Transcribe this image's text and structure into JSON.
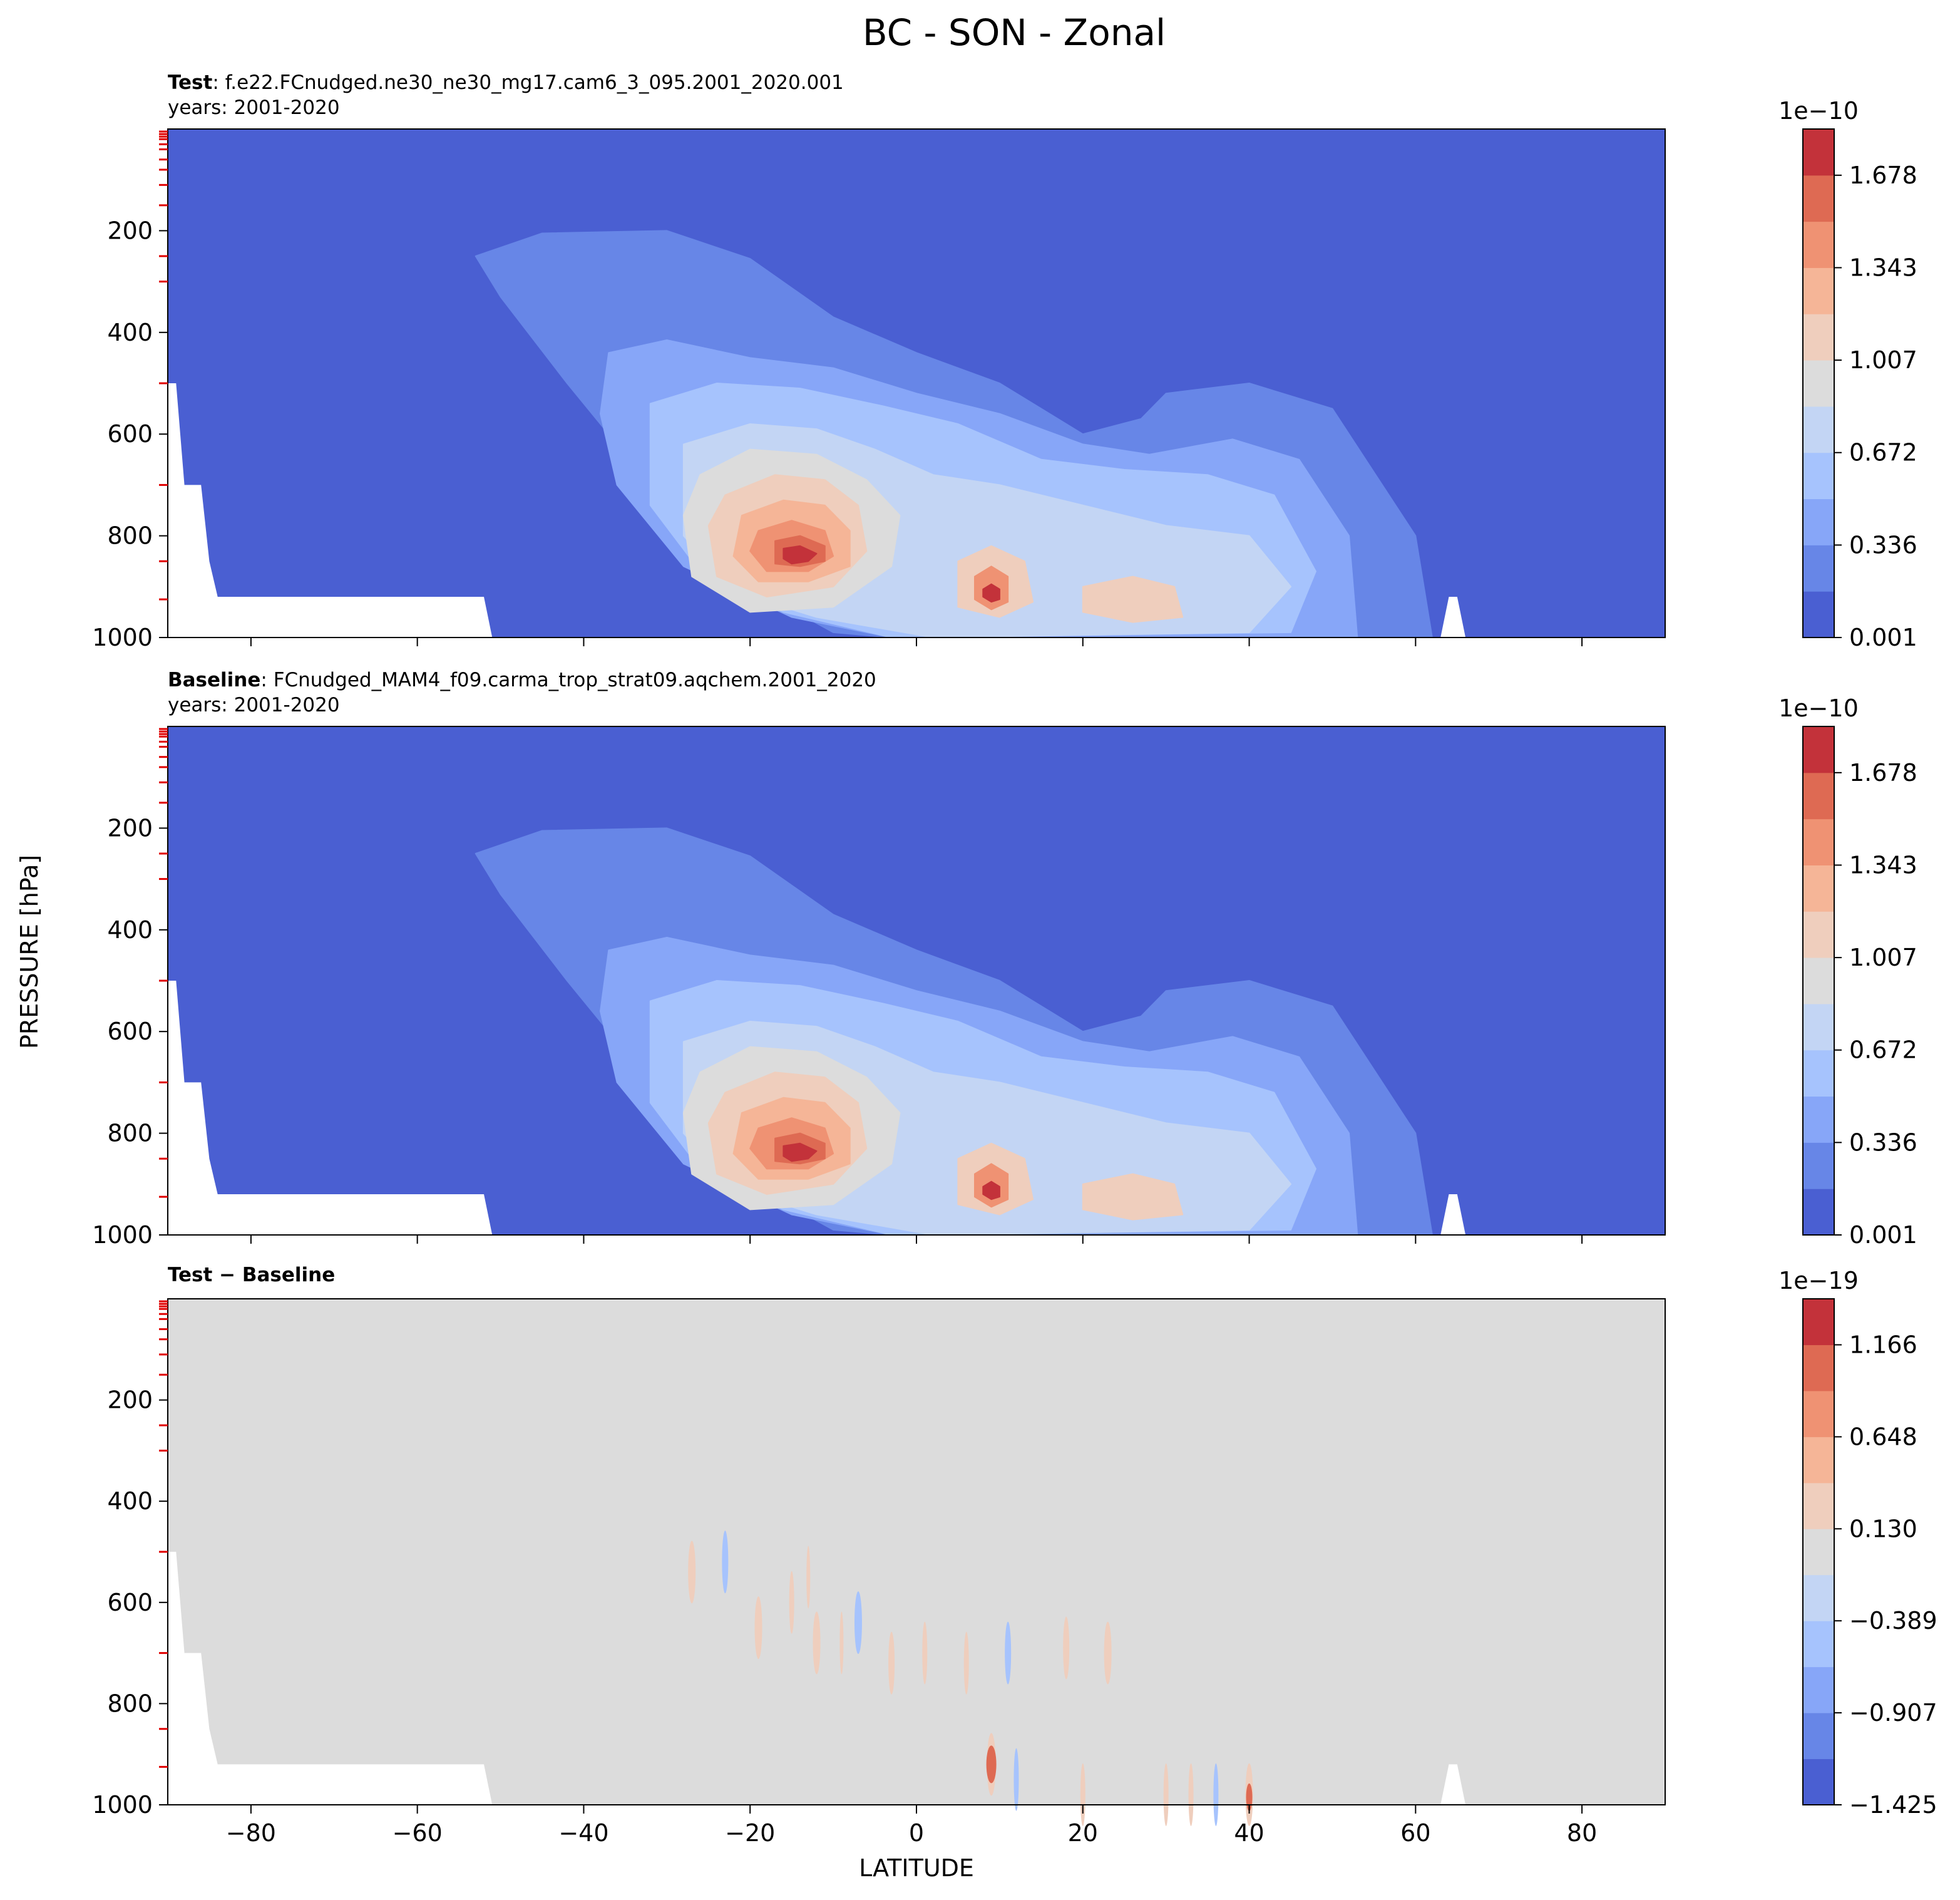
{
  "figure": {
    "title": "BC - SON - Zonal",
    "ylabel": "PRESSURE [hPa]",
    "xlabel": "LATITUDE"
  },
  "chart_data": [
    {
      "type": "heatmap",
      "panel": "test",
      "case_label": "Test",
      "case_name": "f.e22.FCnudged.ne30_ne30_mg17.cam6_3_095.2001_2020.001",
      "years": "years: 2001-2020",
      "xlabel": "LATITUDE",
      "ylabel": "PRESSURE [hPa]",
      "xlim": [
        -90,
        90
      ],
      "ylim": [
        1000,
        0
      ],
      "x_ticks": [
        -80,
        -60,
        -40,
        -20,
        0,
        20,
        40,
        60,
        80
      ],
      "y_ticks": [
        200,
        400,
        600,
        800,
        1000
      ],
      "colorbar": {
        "colormap": "coolwarm",
        "offset": "1e−10",
        "ticks": [
          "0.001",
          "0.336",
          "0.672",
          "1.007",
          "1.343",
          "1.678"
        ],
        "range": [
          0.001,
          1.846
        ],
        "levels": 11
      },
      "features": [
        {
          "kind": "low-level maximum",
          "lat": -15,
          "pressure": 850,
          "value": 1.8
        },
        {
          "kind": "secondary maximum",
          "lat": 9,
          "pressure": 920,
          "value": 1.6
        },
        {
          "kind": "plume top",
          "lat": -40,
          "pressure": 200,
          "value": 0.2
        }
      ]
    },
    {
      "type": "heatmap",
      "panel": "baseline",
      "case_label": "Baseline",
      "case_name": "FCnudged_MAM4_f09.carma_trop_strat09.aqchem.2001_2020",
      "years": "years: 2001-2020",
      "xlabel": "LATITUDE",
      "ylabel": "PRESSURE [hPa]",
      "xlim": [
        -90,
        90
      ],
      "ylim": [
        1000,
        0
      ],
      "x_ticks": [
        -80,
        -60,
        -40,
        -20,
        0,
        20,
        40,
        60,
        80
      ],
      "y_ticks": [
        200,
        400,
        600,
        800,
        1000
      ],
      "colorbar": {
        "colormap": "coolwarm",
        "offset": "1e−10",
        "ticks": [
          "0.001",
          "0.336",
          "0.672",
          "1.007",
          "1.343",
          "1.678"
        ],
        "range": [
          0.001,
          1.846
        ],
        "levels": 11
      },
      "features": [
        {
          "kind": "low-level maximum",
          "lat": -15,
          "pressure": 850,
          "value": 1.8
        },
        {
          "kind": "secondary maximum",
          "lat": 9,
          "pressure": 920,
          "value": 1.6
        },
        {
          "kind": "plume top",
          "lat": -40,
          "pressure": 200,
          "value": 0.2
        }
      ]
    },
    {
      "type": "heatmap",
      "panel": "difference",
      "case_label": "Test − Baseline",
      "xlabel": "LATITUDE",
      "ylabel": "PRESSURE [hPa]",
      "xlim": [
        -90,
        90
      ],
      "ylim": [
        1000,
        0
      ],
      "x_ticks": [
        -80,
        -60,
        -40,
        -20,
        0,
        20,
        40,
        60,
        80
      ],
      "y_ticks": [
        200,
        400,
        600,
        800,
        1000
      ],
      "colorbar": {
        "colormap": "coolwarm",
        "offset": "1e−19",
        "ticks": [
          "−1.425",
          "−0.907",
          "−0.389",
          "0.130",
          "0.648",
          "1.166"
        ],
        "range": [
          -1.425,
          1.425
        ],
        "levels": 11
      }
    }
  ]
}
